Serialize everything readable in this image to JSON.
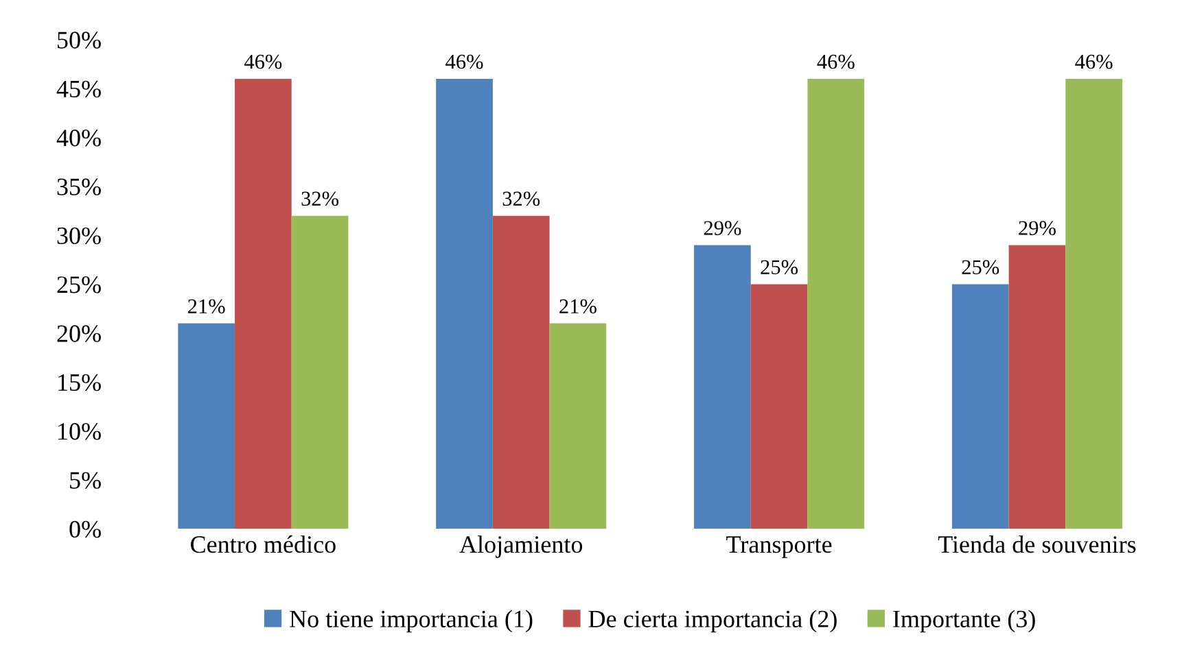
{
  "chart_data": {
    "type": "bar",
    "categories": [
      "Centro médico",
      "Alojamiento",
      "Transporte",
      "Tienda de souvenirs"
    ],
    "series": [
      {
        "name": "No tiene importancia (1)",
        "color": "#4f81bd",
        "values": [
          21,
          46,
          29,
          25
        ],
        "value_labels": [
          "21%",
          "46%",
          "29%",
          "25%"
        ]
      },
      {
        "name": "De cierta importancia (2)",
        "color": "#c0504d",
        "values": [
          46,
          32,
          25,
          29
        ],
        "value_labels": [
          "46%",
          "32%",
          "25%",
          "29%"
        ]
      },
      {
        "name": "Importante (3)",
        "color": "#9bbb59",
        "values": [
          32,
          21,
          46,
          46
        ],
        "value_labels": [
          "32%",
          "21%",
          "46%",
          "46%"
        ]
      }
    ],
    "ylim": [
      0,
      50
    ],
    "yticks": [
      {
        "value": 0,
        "label": "0%"
      },
      {
        "value": 5,
        "label": "5%"
      },
      {
        "value": 10,
        "label": "10%"
      },
      {
        "value": 15,
        "label": "15%"
      },
      {
        "value": 20,
        "label": "20%"
      },
      {
        "value": 25,
        "label": "25%"
      },
      {
        "value": 30,
        "label": "30%"
      },
      {
        "value": 35,
        "label": "35%"
      },
      {
        "value": 40,
        "label": "40%"
      },
      {
        "value": 45,
        "label": "45%"
      },
      {
        "value": 50,
        "label": "50%"
      }
    ],
    "grid": false,
    "legend": "bottom"
  }
}
